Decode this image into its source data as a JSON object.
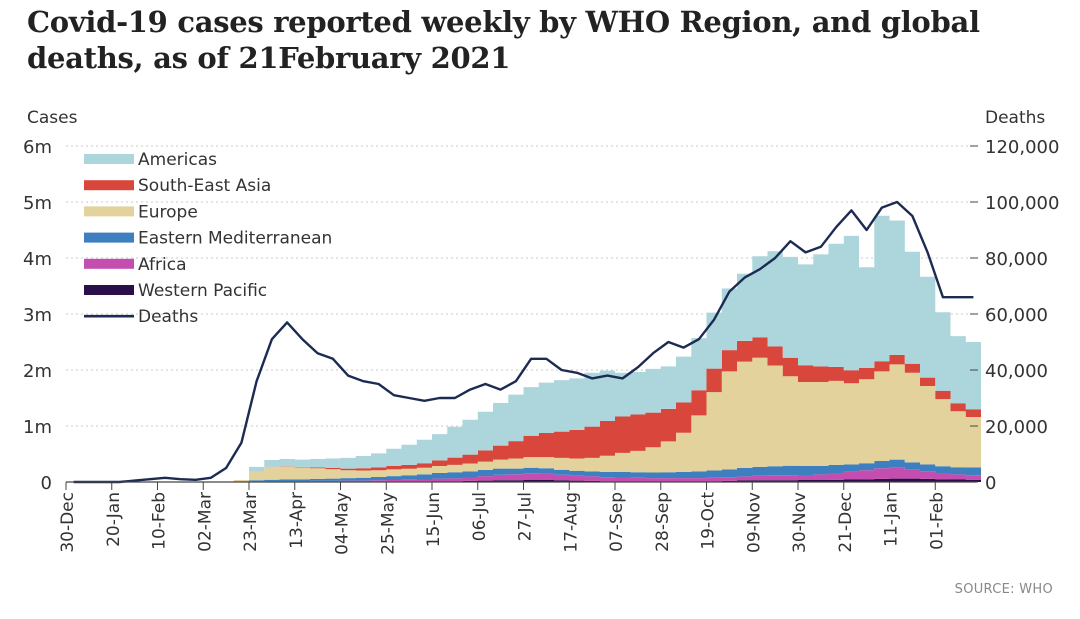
{
  "title": "Covid-19 cases reported weekly by WHO Region, and global deaths, as of 21February 2021",
  "source": "SOURCE: WHO",
  "chart_data": {
    "type": "area",
    "stacked": true,
    "y_left_label": "Cases",
    "y_right_label": "Deaths",
    "y_left_ticks": [
      "0",
      "1m",
      "2m",
      "3m",
      "4m",
      "5m",
      "6m"
    ],
    "y_left_values": [
      0,
      1000000,
      2000000,
      3000000,
      4000000,
      5000000,
      6000000
    ],
    "y_right_ticks": [
      "0",
      "20,000",
      "40,000",
      "60,000",
      "80,000",
      "100,000",
      "120,000"
    ],
    "ylim_left": [
      0,
      6000000
    ],
    "ylim_right": [
      0,
      120000
    ],
    "x_tick_labels": [
      "30-Dec",
      "20-Jan",
      "10-Feb",
      "02-Mar",
      "23-Mar",
      "13-Apr",
      "04-May",
      "25-May",
      "15-Jun",
      "06-Jul",
      "27-Jul",
      "17-Aug",
      "07-Sep",
      "28-Sep",
      "19-Oct",
      "09-Nov",
      "30-Nov",
      "21-Dec",
      "11-Jan",
      "01-Feb"
    ],
    "x_tick_index": [
      0,
      3,
      6,
      9,
      12,
      15,
      18,
      21,
      24,
      27,
      30,
      33,
      36,
      39,
      42,
      45,
      48,
      51,
      54,
      57
    ],
    "weeks": 60,
    "stack_order": [
      "Western Pacific",
      "Africa",
      "Eastern Mediterranean",
      "Europe",
      "South-East Asia",
      "Americas"
    ],
    "legend": [
      {
        "name": "Americas",
        "color": "#acd6db"
      },
      {
        "name": "South-East Asia",
        "color": "#d9473c"
      },
      {
        "name": "Europe",
        "color": "#e3d29c"
      },
      {
        "name": "Eastern Mediterranean",
        "color": "#3e7fc0"
      },
      {
        "name": "Africa",
        "color": "#c44db0"
      },
      {
        "name": "Western Pacific",
        "color": "#2b0f4a"
      },
      {
        "name": "Deaths",
        "color": "#1d2b53"
      }
    ],
    "series": [
      {
        "name": "Western Pacific",
        "color": "#2b0f4a",
        "values": [
          0,
          0,
          0,
          0,
          0,
          0,
          0,
          0,
          0,
          0,
          0,
          10000,
          10000,
          10000,
          10000,
          10000,
          10000,
          10000,
          10000,
          10000,
          10000,
          10000,
          10000,
          10000,
          15000,
          15000,
          20000,
          25000,
          30000,
          30000,
          35000,
          35000,
          30000,
          25000,
          20000,
          15000,
          15000,
          15000,
          15000,
          15000,
          15000,
          15000,
          15000,
          20000,
          30000,
          30000,
          30000,
          30000,
          35000,
          35000,
          40000,
          45000,
          50000,
          55000,
          60000,
          60000,
          55000,
          50000,
          45000,
          40000
        ]
      },
      {
        "name": "Africa",
        "color": "#c44db0",
        "values": [
          0,
          0,
          0,
          0,
          0,
          0,
          0,
          0,
          0,
          0,
          0,
          0,
          5000,
          5000,
          5000,
          5000,
          10000,
          10000,
          15000,
          15000,
          20000,
          25000,
          30000,
          35000,
          45000,
          50000,
          60000,
          80000,
          100000,
          110000,
          120000,
          115000,
          100000,
          85000,
          80000,
          70000,
          65000,
          60000,
          55000,
          55000,
          55000,
          55000,
          60000,
          65000,
          70000,
          80000,
          90000,
          90000,
          90000,
          100000,
          120000,
          140000,
          160000,
          190000,
          200000,
          160000,
          140000,
          110000,
          90000,
          80000
        ]
      },
      {
        "name": "Eastern Mediterranean",
        "color": "#3e7fc0",
        "values": [
          0,
          0,
          0,
          0,
          0,
          0,
          0,
          0,
          0,
          0,
          0,
          5000,
          15000,
          25000,
          30000,
          30000,
          35000,
          40000,
          45000,
          50000,
          60000,
          70000,
          80000,
          90000,
          100000,
          110000,
          110000,
          110000,
          110000,
          100000,
          100000,
          95000,
          90000,
          90000,
          90000,
          95000,
          100000,
          100000,
          100000,
          105000,
          110000,
          120000,
          130000,
          140000,
          150000,
          160000,
          160000,
          170000,
          160000,
          150000,
          145000,
          130000,
          125000,
          130000,
          140000,
          130000,
          120000,
          120000,
          130000,
          140000
        ]
      },
      {
        "name": "Europe",
        "color": "#e3d29c",
        "values": [
          0,
          0,
          0,
          0,
          0,
          0,
          0,
          0,
          0,
          0,
          0,
          20000,
          150000,
          230000,
          230000,
          215000,
          190000,
          170000,
          140000,
          130000,
          120000,
          120000,
          115000,
          120000,
          125000,
          130000,
          140000,
          150000,
          160000,
          180000,
          190000,
          200000,
          210000,
          220000,
          240000,
          290000,
          340000,
          380000,
          450000,
          550000,
          700000,
          1000000,
          1400000,
          1750000,
          1900000,
          1950000,
          1800000,
          1600000,
          1500000,
          1500000,
          1500000,
          1450000,
          1500000,
          1600000,
          1700000,
          1600000,
          1400000,
          1200000,
          1000000,
          900000
        ]
      },
      {
        "name": "South-East Asia",
        "color": "#d9473c",
        "values": [
          0,
          0,
          0,
          0,
          0,
          0,
          0,
          0,
          0,
          0,
          0,
          0,
          0,
          2000,
          5000,
          10000,
          15000,
          20000,
          30000,
          40000,
          50000,
          60000,
          70000,
          80000,
          100000,
          130000,
          160000,
          200000,
          250000,
          310000,
          380000,
          430000,
          470000,
          510000,
          560000,
          620000,
          650000,
          650000,
          620000,
          580000,
          540000,
          450000,
          420000,
          380000,
          370000,
          360000,
          340000,
          330000,
          300000,
          280000,
          250000,
          230000,
          200000,
          180000,
          170000,
          160000,
          150000,
          150000,
          140000,
          140000
        ]
      },
      {
        "name": "Americas",
        "color": "#acd6db",
        "values": [
          0,
          0,
          0,
          0,
          0,
          0,
          0,
          0,
          0,
          0,
          0,
          0,
          90000,
          120000,
          130000,
          130000,
          150000,
          170000,
          190000,
          220000,
          250000,
          310000,
          360000,
          420000,
          470000,
          550000,
          620000,
          690000,
          760000,
          830000,
          870000,
          900000,
          920000,
          920000,
          960000,
          900000,
          780000,
          760000,
          780000,
          760000,
          820000,
          930000,
          1000000,
          1100000,
          1200000,
          1450000,
          1700000,
          1800000,
          1800000,
          2000000,
          2200000,
          2400000,
          1800000,
          2600000,
          2400000,
          2000000,
          1800000,
          1400000,
          1200000,
          1200000
        ]
      }
    ],
    "deaths": [
      0,
      0,
      0,
      0,
      500,
      1000,
      1500,
      1000,
      800,
      1500,
      5000,
      14000,
      36000,
      51000,
      57000,
      51000,
      46000,
      44000,
      38000,
      36000,
      35000,
      31000,
      30000,
      29000,
      30000,
      30000,
      33000,
      35000,
      33000,
      36000,
      44000,
      44000,
      40000,
      39000,
      37000,
      38000,
      37000,
      41000,
      46000,
      50000,
      48000,
      51000,
      58000,
      68000,
      73000,
      76000,
      80000,
      86000,
      82000,
      84000,
      91000,
      97000,
      90000,
      98000,
      100000,
      95000,
      82000,
      66000,
      66000,
      66000
    ]
  }
}
